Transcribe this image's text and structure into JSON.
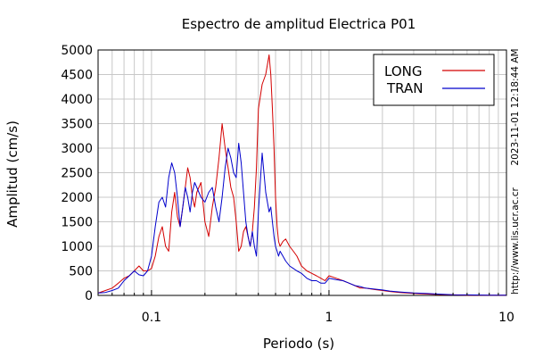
{
  "chart_data": {
    "type": "line",
    "title": "Espectro de amplitud Electrica P01",
    "xlabel": "Periodo (s)",
    "ylabel": "Amplitud (cm/s)",
    "xscale": "log",
    "xlim": [
      0.05,
      10
    ],
    "ylim": [
      0,
      5000
    ],
    "x_ticks": [
      {
        "value": 0.1,
        "label": "0.1"
      },
      {
        "value": 1,
        "label": "1"
      },
      {
        "value": 10,
        "label": "10"
      }
    ],
    "y_ticks": [
      0,
      500,
      1000,
      1500,
      2000,
      2500,
      3000,
      3500,
      4000,
      4500,
      5000
    ],
    "grid": true,
    "legend_position": "top-right",
    "side_text": {
      "timestamp": "2023-11-01 12:18:44 AM",
      "url": "http://www.lis.ucr.ac.cr"
    },
    "series": [
      {
        "name": "LONG",
        "color": "#d40000",
        "x": [
          0.05,
          0.055,
          0.06,
          0.065,
          0.07,
          0.075,
          0.08,
          0.085,
          0.09,
          0.095,
          0.1,
          0.105,
          0.11,
          0.115,
          0.12,
          0.125,
          0.13,
          0.135,
          0.14,
          0.145,
          0.15,
          0.155,
          0.16,
          0.165,
          0.17,
          0.175,
          0.18,
          0.19,
          0.2,
          0.21,
          0.22,
          0.23,
          0.24,
          0.25,
          0.26,
          0.27,
          0.28,
          0.29,
          0.3,
          0.31,
          0.32,
          0.33,
          0.34,
          0.35,
          0.36,
          0.37,
          0.38,
          0.39,
          0.4,
          0.42,
          0.44,
          0.46,
          0.47,
          0.48,
          0.49,
          0.5,
          0.51,
          0.52,
          0.53,
          0.55,
          0.57,
          0.6,
          0.63,
          0.66,
          0.7,
          0.75,
          0.8,
          0.85,
          0.9,
          0.95,
          1.0,
          1.1,
          1.2,
          1.3,
          1.4,
          1.5,
          1.6,
          1.8,
          2.0,
          2.2,
          2.5,
          3.0,
          3.5,
          4.0,
          5.0,
          6.0,
          8.0,
          10.0
        ],
        "values": [
          50,
          100,
          150,
          250,
          350,
          400,
          500,
          600,
          500,
          500,
          550,
          800,
          1200,
          1400,
          1000,
          900,
          1700,
          2100,
          1600,
          1400,
          1800,
          2200,
          2600,
          2400,
          2000,
          1800,
          2100,
          2300,
          1500,
          1200,
          1800,
          2200,
          2800,
          3500,
          3000,
          2600,
          2200,
          2000,
          1500,
          900,
          1000,
          1300,
          1400,
          1200,
          1000,
          1300,
          1800,
          2600,
          3800,
          4300,
          4500,
          4900,
          4500,
          3800,
          3000,
          2000,
          1400,
          1100,
          1000,
          1100,
          1150,
          1000,
          900,
          800,
          600,
          500,
          450,
          400,
          350,
          300,
          400,
          350,
          300,
          250,
          200,
          150,
          150,
          120,
          100,
          80,
          60,
          40,
          30,
          20,
          10,
          5,
          5,
          5
        ]
      },
      {
        "name": "TRAN",
        "color": "#0000cc",
        "x": [
          0.05,
          0.055,
          0.06,
          0.065,
          0.07,
          0.075,
          0.08,
          0.085,
          0.09,
          0.095,
          0.1,
          0.105,
          0.11,
          0.115,
          0.12,
          0.125,
          0.13,
          0.135,
          0.14,
          0.145,
          0.15,
          0.155,
          0.16,
          0.165,
          0.17,
          0.175,
          0.18,
          0.19,
          0.2,
          0.21,
          0.22,
          0.23,
          0.24,
          0.25,
          0.26,
          0.27,
          0.28,
          0.29,
          0.3,
          0.31,
          0.32,
          0.33,
          0.34,
          0.35,
          0.36,
          0.37,
          0.38,
          0.39,
          0.4,
          0.42,
          0.44,
          0.46,
          0.47,
          0.48,
          0.49,
          0.5,
          0.51,
          0.52,
          0.53,
          0.55,
          0.57,
          0.6,
          0.63,
          0.66,
          0.7,
          0.75,
          0.8,
          0.85,
          0.9,
          0.95,
          1.0,
          1.1,
          1.2,
          1.3,
          1.4,
          1.5,
          1.6,
          1.8,
          2.0,
          2.2,
          2.5,
          3.0,
          3.5,
          4.0,
          5.0,
          6.0,
          8.0,
          10.0
        ],
        "values": [
          50,
          60,
          100,
          150,
          300,
          400,
          500,
          420,
          400,
          500,
          800,
          1400,
          1900,
          2000,
          1800,
          2400,
          2700,
          2500,
          2000,
          1400,
          1800,
          2200,
          2000,
          1700,
          2100,
          2300,
          2200,
          2000,
          1900,
          2100,
          2200,
          1800,
          1500,
          2000,
          2600,
          3000,
          2800,
          2500,
          2400,
          3100,
          2700,
          2100,
          1500,
          1200,
          1000,
          1300,
          1000,
          800,
          1700,
          2900,
          2100,
          1700,
          1800,
          1500,
          1200,
          1000,
          900,
          800,
          900,
          800,
          700,
          600,
          550,
          500,
          450,
          350,
          300,
          300,
          250,
          250,
          350,
          320,
          300,
          250,
          200,
          180,
          150,
          130,
          110,
          90,
          70,
          50,
          40,
          30,
          15,
          10,
          5,
          5
        ]
      }
    ]
  }
}
